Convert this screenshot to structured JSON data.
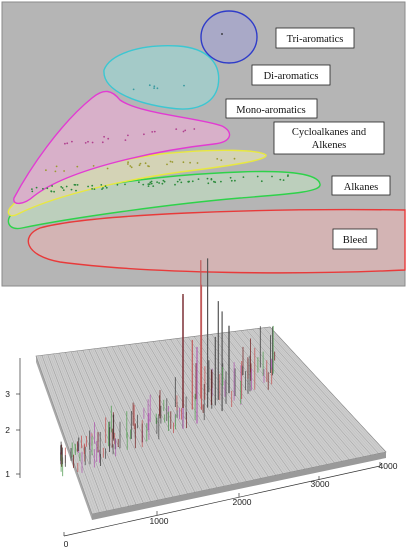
{
  "top_panel": {
    "regions": [
      {
        "name": "tri-aromatics",
        "label": "Tri-aromatics",
        "color": "#2f3cc9",
        "fill": "#a9a9c6"
      },
      {
        "name": "di-aromatics",
        "label": "Di-aromatics",
        "color": "#3cc7d2",
        "fill": "#a3c9c7"
      },
      {
        "name": "mono-aromatics",
        "label": "Mono-aromatics",
        "color": "#e23bd2",
        "fill": "#d9b1c9"
      },
      {
        "name": "cycloalkanes-alkenes",
        "label_lines": [
          "Cycloalkanes and",
          "Alkenes"
        ],
        "color": "#e8e840",
        "fill": "#d5d4b4"
      },
      {
        "name": "alkanes",
        "label": "Alkanes",
        "color": "#2ed24a",
        "fill": "#b9cdb9"
      },
      {
        "name": "bleed",
        "label": "Bleed",
        "color": "#e83a3a",
        "fill": "#d2b4b4"
      }
    ]
  },
  "bottom_panel": {
    "z_ticks": [
      "1",
      "2",
      "3"
    ],
    "x_ticks": [
      "0",
      "1000",
      "2000",
      "3000",
      "4000"
    ]
  },
  "colors": {
    "panel_bg": "#b4b4b4",
    "panel_border": "#8a8a8a"
  }
}
